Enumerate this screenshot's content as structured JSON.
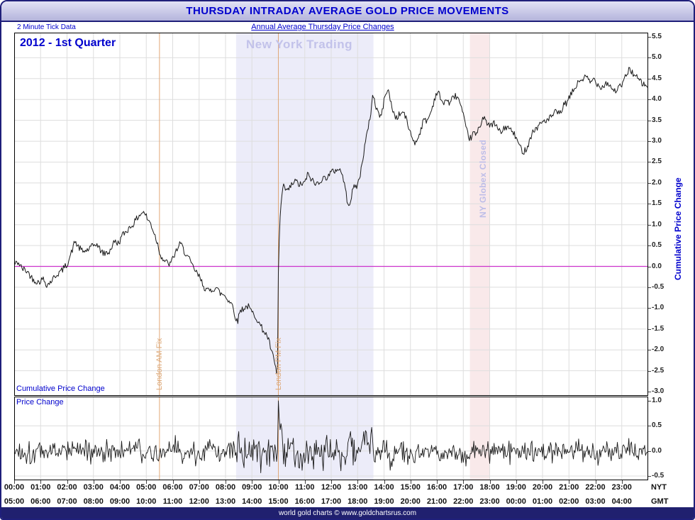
{
  "window": {
    "title": "THURSDAY INTRADAY AVERAGE GOLD PRICE MOVEMENTS"
  },
  "header": {
    "tick_note": "2 Minute Tick Data",
    "subtitle": "Annual Average Thursday Price Changes"
  },
  "footer": {
    "text": "world gold charts © www.goldchartsrus.com"
  },
  "colors": {
    "accent_blue": "#0000cd",
    "frame_navy": "#1f1f7a",
    "zero_line": "#cc33cc",
    "fix_line": "#e0a878",
    "grid": "#dedede",
    "series": "#1a1a1a"
  },
  "chart_data": {
    "type": "line",
    "title": "THURSDAY INTRADAY AVERAGE GOLD PRICE MOVEMENTS",
    "subtitle": "Annual Average Thursday Price Changes",
    "series_label": "2012 - 1st Quarter",
    "x_axis": {
      "unit": "hours",
      "range": [
        0,
        24
      ],
      "tick_step_hours": 1,
      "row_labels": [
        "NYT",
        "GMT"
      ],
      "nyt": [
        "00:00",
        "01:00",
        "02:00",
        "03:00",
        "04:00",
        "05:00",
        "06:00",
        "07:00",
        "08:00",
        "09:00",
        "10:00",
        "11:00",
        "12:00",
        "13:00",
        "14:00",
        "15:00",
        "16:00",
        "17:00",
        "18:00",
        "19:00",
        "20:00",
        "21:00",
        "22:00",
        "23:00"
      ],
      "gmt": [
        "05:00",
        "06:00",
        "07:00",
        "08:00",
        "09:00",
        "10:00",
        "11:00",
        "12:00",
        "13:00",
        "14:00",
        "15:00",
        "16:00",
        "17:00",
        "18:00",
        "19:00",
        "20:00",
        "21:00",
        "22:00",
        "23:00",
        "00:00",
        "01:00",
        "02:00",
        "03:00",
        "04:00"
      ]
    },
    "top_panel": {
      "label": "Cumulative Price Change",
      "ylabel_right": "Cumulative Price Change",
      "ylim": [
        -3.0,
        5.5
      ],
      "ytick_step": 0.5,
      "grid": true,
      "zero_line": 0.0,
      "series": {
        "name": "Cumulative Price Change",
        "points": [
          [
            0,
            0.05
          ],
          [
            0.15,
            0.1
          ],
          [
            0.3,
            -0.05
          ],
          [
            0.5,
            -0.12
          ],
          [
            0.7,
            -0.3
          ],
          [
            0.9,
            -0.38
          ],
          [
            1.1,
            -0.3
          ],
          [
            1.25,
            -0.45
          ],
          [
            1.4,
            -0.35
          ],
          [
            1.6,
            -0.2
          ],
          [
            1.8,
            -0.1
          ],
          [
            2,
            0.05
          ],
          [
            2.15,
            0.3
          ],
          [
            2.3,
            0.6
          ],
          [
            2.45,
            0.45
          ],
          [
            2.6,
            0.35
          ],
          [
            2.8,
            0.4
          ],
          [
            3,
            0.5
          ],
          [
            3.1,
            0.55
          ],
          [
            3.25,
            0.4
          ],
          [
            3.4,
            0.3
          ],
          [
            3.6,
            0.35
          ],
          [
            3.8,
            0.6
          ],
          [
            3.95,
            0.55
          ],
          [
            4.1,
            0.75
          ],
          [
            4.25,
            0.85
          ],
          [
            4.4,
            0.95
          ],
          [
            4.55,
            1.05
          ],
          [
            4.7,
            1.2
          ],
          [
            4.85,
            1.3
          ],
          [
            4.95,
            1.28
          ],
          [
            5.05,
            1.12
          ],
          [
            5.15,
            1.05
          ],
          [
            5.3,
            0.8
          ],
          [
            5.45,
            0.5
          ],
          [
            5.5,
            0.35
          ],
          [
            5.6,
            0.2
          ],
          [
            5.75,
            0.1
          ],
          [
            5.9,
            0.05
          ],
          [
            6,
            0.18
          ],
          [
            6.15,
            0.4
          ],
          [
            6.3,
            0.55
          ],
          [
            6.45,
            0.35
          ],
          [
            6.6,
            0.2
          ],
          [
            6.75,
            0.0
          ],
          [
            6.9,
            -0.15
          ],
          [
            7.05,
            -0.3
          ],
          [
            7.2,
            -0.5
          ],
          [
            7.35,
            -0.6
          ],
          [
            7.5,
            -0.55
          ],
          [
            7.65,
            -0.5
          ],
          [
            7.8,
            -0.65
          ],
          [
            7.95,
            -0.68
          ],
          [
            8.1,
            -0.8
          ],
          [
            8.25,
            -0.9
          ],
          [
            8.35,
            -1.15
          ],
          [
            8.45,
            -1.35
          ],
          [
            8.55,
            -1.05
          ],
          [
            8.7,
            -1.0
          ],
          [
            8.85,
            -0.95
          ],
          [
            9,
            -1.1
          ],
          [
            9.15,
            -1.2
          ],
          [
            9.3,
            -1.4
          ],
          [
            9.45,
            -1.55
          ],
          [
            9.6,
            -1.7
          ],
          [
            9.75,
            -2.05
          ],
          [
            9.85,
            -2.3
          ],
          [
            9.93,
            -2.55
          ],
          [
            9.97,
            -2.4
          ],
          [
            10,
            -0.2
          ],
          [
            10.05,
            1.0
          ],
          [
            10.12,
            1.65
          ],
          [
            10.2,
            1.9
          ],
          [
            10.35,
            1.8
          ],
          [
            10.5,
            1.95
          ],
          [
            10.65,
            2.05
          ],
          [
            10.8,
            1.95
          ],
          [
            11,
            2.0
          ],
          [
            11.1,
            2.2
          ],
          [
            11.25,
            2.1
          ],
          [
            11.4,
            1.95
          ],
          [
            11.55,
            2.05
          ],
          [
            11.7,
            2.1
          ],
          [
            11.85,
            2.15
          ],
          [
            12,
            2.25
          ],
          [
            12.15,
            2.3
          ],
          [
            12.3,
            2.35
          ],
          [
            12.45,
            2.15
          ],
          [
            12.6,
            1.6
          ],
          [
            12.7,
            1.5
          ],
          [
            12.85,
            1.9
          ],
          [
            13,
            1.95
          ],
          [
            13.1,
            2.2
          ],
          [
            13.2,
            2.6
          ],
          [
            13.3,
            3.0
          ],
          [
            13.4,
            3.3
          ],
          [
            13.5,
            3.7
          ],
          [
            13.58,
            4.15
          ],
          [
            13.68,
            3.85
          ],
          [
            13.78,
            3.7
          ],
          [
            13.88,
            3.55
          ],
          [
            13.98,
            3.9
          ],
          [
            14.08,
            4.2
          ],
          [
            14.15,
            4.25
          ],
          [
            14.3,
            3.8
          ],
          [
            14.45,
            3.55
          ],
          [
            14.6,
            3.65
          ],
          [
            14.75,
            3.7
          ],
          [
            14.9,
            3.4
          ],
          [
            15.05,
            3.1
          ],
          [
            15.2,
            2.95
          ],
          [
            15.35,
            3.2
          ],
          [
            15.5,
            3.5
          ],
          [
            15.65,
            3.5
          ],
          [
            15.8,
            3.75
          ],
          [
            15.95,
            4.1
          ],
          [
            16.05,
            4.2
          ],
          [
            16.2,
            3.9
          ],
          [
            16.35,
            4.0
          ],
          [
            16.5,
            3.9
          ],
          [
            16.65,
            4.1
          ],
          [
            16.8,
            4.05
          ],
          [
            16.9,
            3.85
          ],
          [
            17,
            3.6
          ],
          [
            17.1,
            3.3
          ],
          [
            17.25,
            3.05
          ],
          [
            17.4,
            3.2
          ],
          [
            17.5,
            3.15
          ],
          [
            17.65,
            3.4
          ],
          [
            17.8,
            3.65
          ],
          [
            17.9,
            3.4
          ],
          [
            18,
            3.35
          ],
          [
            18.15,
            3.45
          ],
          [
            18.3,
            3.3
          ],
          [
            18.45,
            3.2
          ],
          [
            18.6,
            3.35
          ],
          [
            18.75,
            3.3
          ],
          [
            18.9,
            3.2
          ],
          [
            19.05,
            3.0
          ],
          [
            19.2,
            2.8
          ],
          [
            19.3,
            2.75
          ],
          [
            19.45,
            2.9
          ],
          [
            19.6,
            3.2
          ],
          [
            19.75,
            3.3
          ],
          [
            19.9,
            3.4
          ],
          [
            20.05,
            3.5
          ],
          [
            20.2,
            3.5
          ],
          [
            20.35,
            3.6
          ],
          [
            20.5,
            3.7
          ],
          [
            20.65,
            3.65
          ],
          [
            20.8,
            3.85
          ],
          [
            20.95,
            3.95
          ],
          [
            21.1,
            4.15
          ],
          [
            21.25,
            4.3
          ],
          [
            21.4,
            4.45
          ],
          [
            21.55,
            4.5
          ],
          [
            21.65,
            4.55
          ],
          [
            21.8,
            4.4
          ],
          [
            21.95,
            4.5
          ],
          [
            22.1,
            4.35
          ],
          [
            22.25,
            4.3
          ],
          [
            22.4,
            4.4
          ],
          [
            22.55,
            4.35
          ],
          [
            22.7,
            4.2
          ],
          [
            22.85,
            4.25
          ],
          [
            23,
            4.35
          ],
          [
            23.15,
            4.55
          ],
          [
            23.3,
            4.75
          ],
          [
            23.45,
            4.6
          ],
          [
            23.6,
            4.5
          ],
          [
            23.75,
            4.4
          ],
          [
            23.9,
            4.32
          ],
          [
            24,
            4.3
          ]
        ]
      }
    },
    "bottom_panel": {
      "label": "Price Change",
      "ylim": [
        -0.5,
        1.0
      ],
      "yticks": [
        1.0,
        0.5,
        0.0,
        -0.5
      ],
      "derivation": "2-minute price changes (first differences of the cumulative series)",
      "max_spike": {
        "x": 10.0,
        "y": 1.0
      },
      "noise_amplitude": 0.33,
      "active_window": {
        "start": 8.33,
        "end": 13.67,
        "amplitude": 0.5
      }
    },
    "annotations": {
      "ny_trading": {
        "label": "New York Trading",
        "start": 8.4,
        "end": 13.6,
        "fill": "#ececf9",
        "text_color": "#c2c2ea"
      },
      "globex_closed": {
        "label": "NY Globex Closed",
        "start": 17.25,
        "end": 18.0,
        "fill": "#f9e9ea",
        "text_color": "#bdbde8"
      },
      "london_am_fix": {
        "label": "London AM Fix",
        "x": 5.5,
        "color": "#e0a878"
      },
      "london_pm_fix": {
        "label": "London PM Fix",
        "x": 10.0,
        "color": "#e0a878"
      }
    }
  }
}
